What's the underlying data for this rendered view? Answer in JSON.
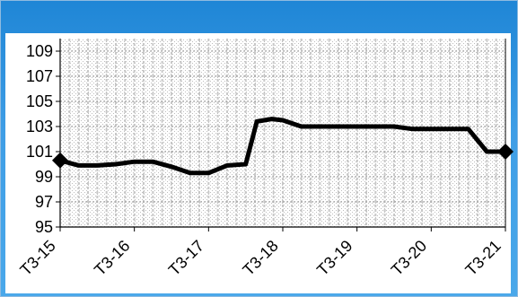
{
  "chart_data": {
    "type": "line",
    "title": "",
    "xlabel": "",
    "ylabel": "",
    "categories": [
      "T3-15",
      "T3-16",
      "T3-17",
      "T3-18",
      "T3-19",
      "T3-20",
      "T3-21"
    ],
    "ylim": [
      95,
      110
    ],
    "yticks": [
      95,
      97,
      99,
      101,
      103,
      105,
      107,
      109
    ],
    "x_range": [
      0,
      6
    ],
    "grid": true,
    "legend": "none",
    "series": [
      {
        "color": "#000000",
        "x": [
          0,
          0.25,
          0.5,
          0.75,
          1.0,
          1.25,
          1.5,
          1.75,
          2.0,
          2.25,
          2.5,
          2.65,
          2.85,
          3.0,
          3.25,
          3.5,
          3.75,
          4.0,
          4.25,
          4.5,
          4.75,
          5.0,
          5.25,
          5.5,
          5.75,
          6.0
        ],
        "values": [
          100.3,
          99.9,
          99.9,
          100.0,
          100.2,
          100.2,
          99.8,
          99.3,
          99.3,
          99.9,
          100.0,
          103.4,
          103.6,
          103.5,
          103.0,
          103.0,
          103.0,
          103.0,
          103.0,
          103.0,
          102.8,
          102.8,
          102.8,
          102.8,
          101.0,
          101.0
        ]
      }
    ],
    "markers": [
      {
        "x": 0,
        "value": 100.3
      },
      {
        "x": 6,
        "value": 101.0
      }
    ],
    "colors": {
      "frame_top": "#1f86d6",
      "frame_bottom": "#4aa8ea",
      "grid": "#c8c8c8",
      "line": "#000000"
    }
  }
}
